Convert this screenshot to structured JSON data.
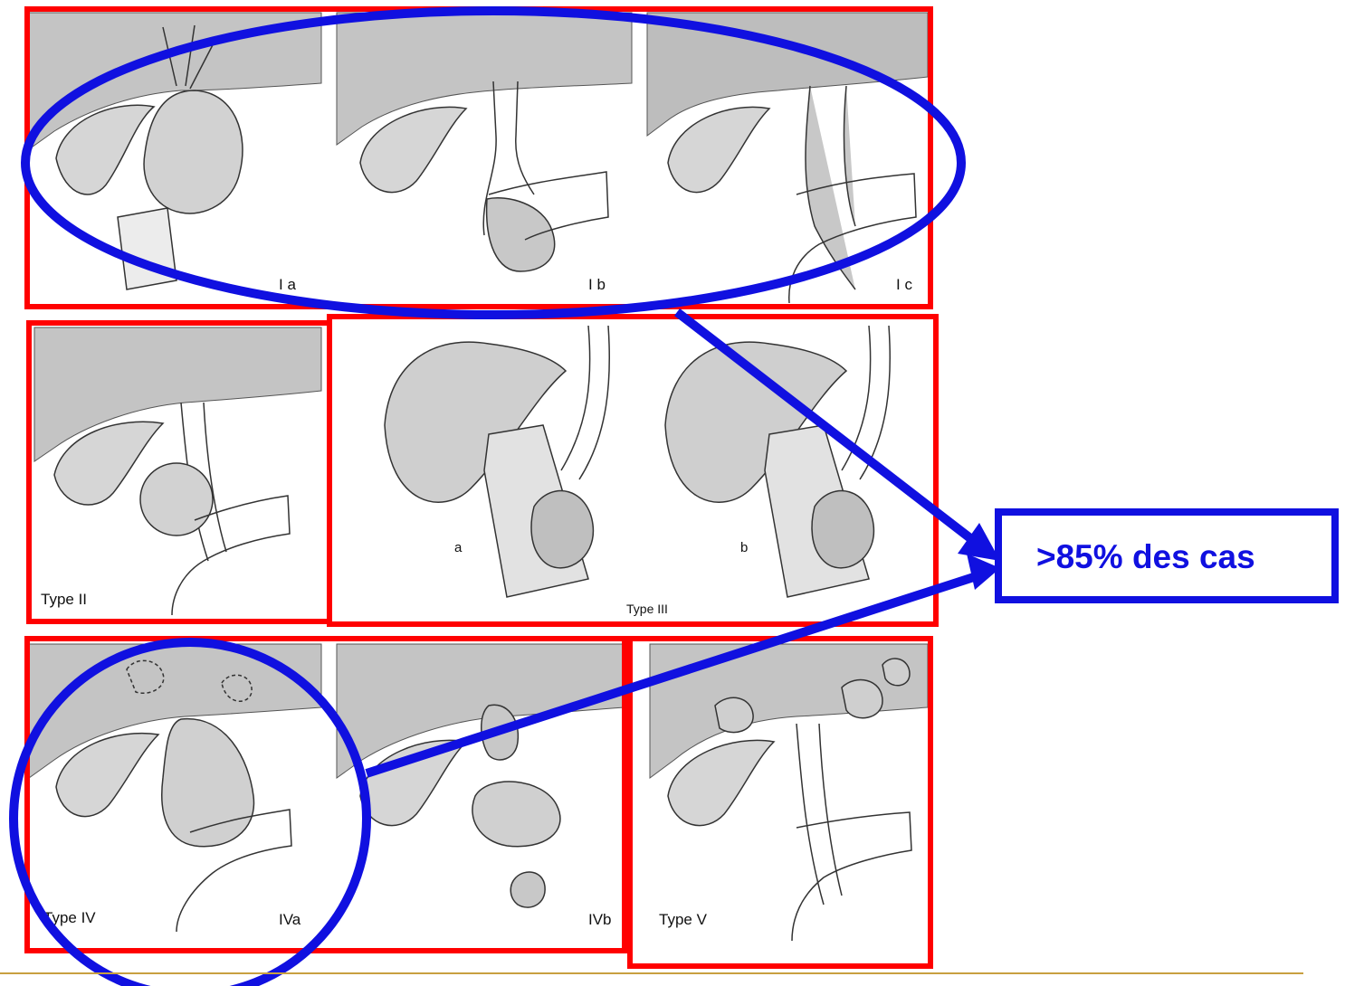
{
  "panel_labels": {
    "ia": "I a",
    "ib": "I b",
    "ic": "I c",
    "type2": "Type II",
    "type3_a": "a",
    "type3_b": "b",
    "type3": "Type III",
    "type4": "Type IV",
    "iva": "IVa",
    "ivb": "IVb",
    "type5": "Type V"
  },
  "callout": {
    "text": ">85% des cas"
  },
  "colors": {
    "frame": "#ff0000",
    "highlight": "#1010e0",
    "liver": "#c4c4c4",
    "organ": "#d2d2d2",
    "footer_rule": "#c8a040"
  }
}
